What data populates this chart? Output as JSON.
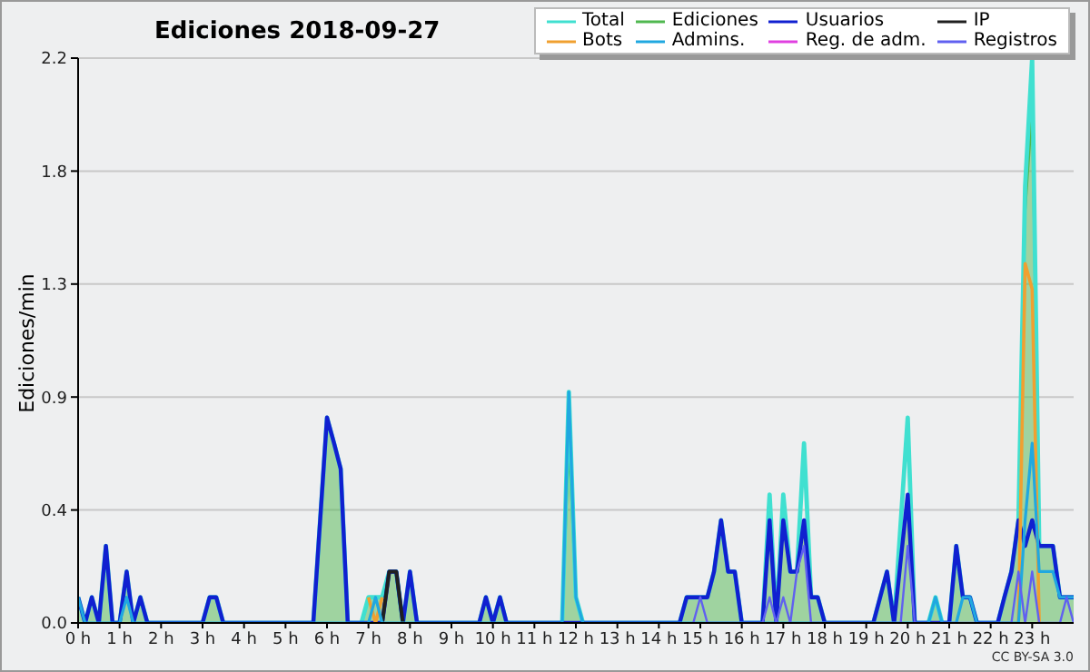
{
  "chart_data": {
    "type": "line",
    "title": "Ediciones  2018-09-27",
    "ylabel": "Ediciones/min",
    "annotations": [
      "CC BY-SA 3.0"
    ],
    "legend": "top right",
    "grid": "y",
    "xlim": [
      0,
      24
    ],
    "xticks": [
      {
        "value": 0,
        "label": "0 h"
      },
      {
        "value": 1,
        "label": "1 h"
      },
      {
        "value": 2,
        "label": "2 h"
      },
      {
        "value": 3,
        "label": "3 h"
      },
      {
        "value": 4,
        "label": "4 h"
      },
      {
        "value": 5,
        "label": "5 h"
      },
      {
        "value": 6,
        "label": "6 h"
      },
      {
        "value": 7,
        "label": "7 h"
      },
      {
        "value": 8,
        "label": "8 h"
      },
      {
        "value": 9,
        "label": "9 h"
      },
      {
        "value": 10,
        "label": "10 h"
      },
      {
        "value": 11,
        "label": "11 h"
      },
      {
        "value": 12,
        "label": "12 h"
      },
      {
        "value": 13,
        "label": "13 h"
      },
      {
        "value": 14,
        "label": "14 h"
      },
      {
        "value": 15,
        "label": "15 h"
      },
      {
        "value": 16,
        "label": "16 h"
      },
      {
        "value": 17,
        "label": "17 h"
      },
      {
        "value": 18,
        "label": "18 h"
      },
      {
        "value": 19,
        "label": "19 h"
      },
      {
        "value": 20,
        "label": "20 h"
      },
      {
        "value": 21,
        "label": "21 h"
      },
      {
        "value": 22,
        "label": "22 h"
      },
      {
        "value": 23,
        "label": "23 h"
      }
    ],
    "ylim": [
      0,
      2.2
    ],
    "yticks": [
      {
        "value": 0,
        "label": "0.0"
      },
      {
        "value": 0.44,
        "label": "0.4"
      },
      {
        "value": 0.88,
        "label": "0.9"
      },
      {
        "value": 1.32,
        "label": "1.3"
      },
      {
        "value": 1.76,
        "label": "1.8"
      },
      2.2
    ],
    "x": [
      0,
      0.17,
      0.33,
      0.5,
      0.67,
      0.83,
      1.0,
      1.17,
      1.33,
      1.5,
      1.67,
      3.0,
      3.17,
      3.33,
      3.5,
      5.67,
      6.0,
      6.17,
      6.33,
      6.5,
      6.83,
      7.0,
      7.17,
      7.33,
      7.5,
      7.67,
      7.83,
      8.0,
      8.17,
      9.67,
      9.83,
      10.0,
      10.17,
      10.33,
      11.67,
      11.83,
      12.0,
      12.17,
      14.5,
      14.67,
      14.83,
      15.0,
      15.17,
      15.33,
      15.5,
      15.67,
      15.83,
      16.0,
      16.5,
      16.67,
      16.83,
      17.0,
      17.17,
      17.33,
      17.5,
      17.67,
      17.83,
      18.0,
      19.17,
      19.5,
      19.67,
      20.0,
      20.17,
      20.5,
      20.67,
      20.83,
      21.0,
      21.17,
      21.33,
      21.5,
      21.67,
      22.17,
      22.33,
      22.5,
      22.67,
      22.83,
      23.0,
      23.17,
      23.33,
      23.5,
      23.67,
      23.83,
      24.0
    ],
    "series": [
      {
        "name": "Total",
        "color": "#40e0d0",
        "values": [
          0.1,
          0,
          0.1,
          0,
          0.3,
          0,
          0,
          0.2,
          0,
          0.1,
          0,
          0,
          0.1,
          0.1,
          0,
          0,
          0.8,
          0.7,
          0.6,
          0,
          0,
          0.1,
          0.1,
          0.1,
          0.2,
          0.2,
          0,
          0.2,
          0,
          0,
          0.1,
          0,
          0.1,
          0,
          0,
          0.9,
          0.1,
          0,
          0,
          0.1,
          0.1,
          0.1,
          0.1,
          0.2,
          0.4,
          0.2,
          0.2,
          0,
          0,
          0.5,
          0,
          0.5,
          0.2,
          0.2,
          0.7,
          0.1,
          0.1,
          0,
          0,
          0.2,
          0,
          0.8,
          0,
          0,
          0.1,
          0,
          0,
          0.3,
          0.1,
          0.1,
          0,
          0,
          0.1,
          0.2,
          0.4,
          1.7,
          2.2,
          0.3,
          0.3,
          0.3,
          0.1,
          0.1,
          0.1
        ]
      },
      {
        "name": "Ediciones",
        "type": "area",
        "color": "#50b850",
        "values": [
          0.1,
          0,
          0.1,
          0,
          0.3,
          0,
          0,
          0.2,
          0,
          0.1,
          0,
          0,
          0.1,
          0.1,
          0,
          0,
          0.8,
          0.7,
          0.6,
          0,
          0,
          0.1,
          0.1,
          0.1,
          0.2,
          0.2,
          0,
          0.2,
          0,
          0,
          0.1,
          0,
          0.1,
          0,
          0,
          0.7,
          0.1,
          0,
          0,
          0.1,
          0.1,
          0.1,
          0.1,
          0.2,
          0.4,
          0.2,
          0.2,
          0,
          0,
          0.4,
          0,
          0.4,
          0.2,
          0.2,
          0.4,
          0.1,
          0.1,
          0,
          0,
          0.2,
          0,
          0.5,
          0,
          0,
          0.1,
          0,
          0,
          0.3,
          0.1,
          0.1,
          0,
          0,
          0.1,
          0.2,
          0.4,
          1.6,
          2.0,
          0.3,
          0.3,
          0.3,
          0.1,
          0.1,
          0.1
        ]
      },
      {
        "name": "Usuarios",
        "color": "#1020d0",
        "values": [
          0.1,
          0,
          0.1,
          0,
          0.3,
          0,
          0,
          0.2,
          0,
          0.1,
          0,
          0,
          0.1,
          0.1,
          0,
          0,
          0.8,
          0.7,
          0.6,
          0,
          0,
          0,
          0,
          0,
          0.2,
          0.2,
          0,
          0.2,
          0,
          0,
          0.1,
          0,
          0.1,
          0,
          0,
          0,
          0,
          0,
          0,
          0.1,
          0.1,
          0.1,
          0.1,
          0.2,
          0.4,
          0.2,
          0.2,
          0,
          0,
          0.4,
          0,
          0.4,
          0.2,
          0.2,
          0.4,
          0.1,
          0.1,
          0,
          0,
          0.2,
          0,
          0.5,
          0,
          0,
          0,
          0,
          0,
          0.3,
          0.1,
          0.1,
          0,
          0,
          0.1,
          0.2,
          0.4,
          0.3,
          0.4,
          0.3,
          0.3,
          0.3,
          0.1,
          0.1,
          0.1
        ]
      },
      {
        "name": "IP",
        "color": "#202020",
        "x": [
          7.33,
          7.5,
          7.67,
          7.83
        ],
        "values": [
          0,
          0.2,
          0.2,
          0
        ]
      },
      {
        "name": "Bots",
        "color": "#f0a030",
        "x": [
          7.0,
          7.17,
          7.33,
          15,
          22.67,
          22.83,
          23.0,
          23.17
        ],
        "values": [
          0.1,
          0,
          0.1,
          null,
          0,
          1.4,
          1.3,
          0
        ]
      },
      {
        "name": "Admins.",
        "color": "#20a8e0",
        "x": [
          0,
          0.17,
          1.0,
          1.17,
          1.33,
          6.83,
          7.0,
          7.17,
          7.33,
          7.5,
          11.67,
          11.83,
          12.0,
          12.17,
          20.5,
          20.67,
          20.83,
          21.17,
          21.33,
          21.5,
          21.67,
          22.67,
          22.83,
          23.0,
          23.17,
          23.33,
          23.5,
          23.67,
          23.83,
          24.0
        ],
        "values": [
          0.1,
          0,
          0,
          0.1,
          0,
          0,
          0,
          0.1,
          0,
          0,
          0,
          0.9,
          0.1,
          0,
          0,
          0.1,
          0,
          0,
          0.1,
          0.1,
          0,
          0,
          0.4,
          0.7,
          0.2,
          0.2,
          0.2,
          0.1,
          0.1,
          0.1
        ]
      },
      {
        "name": "Reg. de adm.",
        "color": "#e040e0",
        "values": [
          null,
          null,
          null,
          null,
          null,
          null,
          null,
          null,
          null,
          null,
          null,
          null,
          null,
          null,
          null,
          null,
          null,
          null,
          null,
          null,
          null,
          null,
          null,
          null,
          null,
          null,
          null,
          null,
          null,
          null,
          null,
          null,
          null,
          null,
          null,
          null,
          null,
          null,
          null,
          null,
          null,
          null,
          null,
          null,
          null,
          null,
          null,
          null,
          null,
          null,
          null,
          null,
          null,
          null,
          null,
          null,
          null,
          null,
          null,
          null,
          null,
          null,
          null,
          null,
          null,
          null,
          null,
          null,
          null,
          null,
          null,
          null,
          null,
          null,
          null,
          null,
          null,
          null,
          null,
          null,
          null,
          null,
          null
        ]
      },
      {
        "name": "Registros",
        "color": "#6060f0",
        "x": [
          14.83,
          15.0,
          15.17,
          16.5,
          16.67,
          16.83,
          17.0,
          17.17,
          17.33,
          17.5,
          17.67,
          19.83,
          20.0,
          20.17,
          22.5,
          22.67,
          22.83,
          23.0,
          23.17,
          23.67,
          23.83,
          24.0
        ],
        "values": [
          0,
          0.1,
          0,
          0,
          0.1,
          0,
          0.1,
          0,
          0.2,
          0.3,
          0,
          0,
          0.3,
          0,
          0,
          0.2,
          0,
          0.2,
          0,
          0,
          0.1,
          0
        ]
      }
    ]
  }
}
